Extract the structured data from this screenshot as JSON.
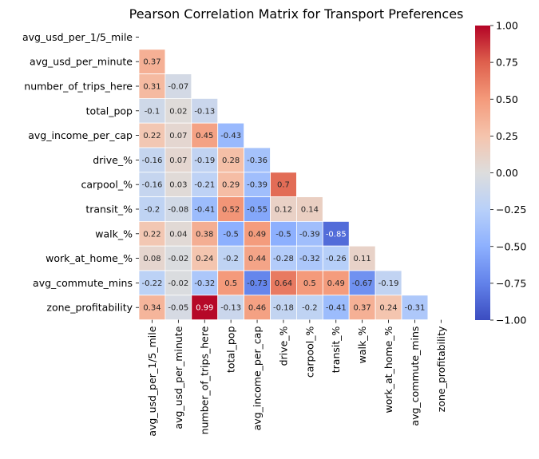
{
  "chart_data": {
    "type": "heatmap",
    "title": "Pearson Correlation Matrix for Transport Preferences",
    "variables": [
      "avg_usd_per_1/5_mile",
      "avg_usd_per_minute",
      "number_of_trips_here",
      "total_pop",
      "avg_income_per_cap",
      "drive_%",
      "carpool_%",
      "transit_%",
      "walk_%",
      "work_at_home_%",
      "avg_commute_mins",
      "zone_profitability"
    ],
    "lower_triangle": [
      [],
      [
        "0.37"
      ],
      [
        "0.31",
        "-0.07"
      ],
      [
        "-0.1",
        "0.02",
        "-0.13"
      ],
      [
        "0.22",
        "0.07",
        "0.45",
        "-0.43"
      ],
      [
        "-0.16",
        "0.07",
        "-0.19",
        "0.28",
        "-0.36"
      ],
      [
        "-0.16",
        "0.03",
        "-0.21",
        "0.29",
        "-0.39",
        "0.7"
      ],
      [
        "-0.2",
        "-0.08",
        "-0.41",
        "0.52",
        "-0.55",
        "0.12",
        "0.14"
      ],
      [
        "0.22",
        "0.04",
        "0.38",
        "-0.5",
        "0.49",
        "-0.5",
        "-0.39",
        "-0.85"
      ],
      [
        "0.08",
        "-0.02",
        "0.24",
        "-0.2",
        "0.44",
        "-0.28",
        "-0.32",
        "-0.26",
        "0.11"
      ],
      [
        "-0.22",
        "-0.02",
        "-0.32",
        "0.5",
        "-0.73",
        "0.64",
        "0.5",
        "0.49",
        "-0.67",
        "-0.19"
      ],
      [
        "0.34",
        "-0.05",
        "0.99",
        "-0.13",
        "0.46",
        "-0.18",
        "-0.2",
        "-0.41",
        "0.37",
        "0.24",
        "-0.31"
      ]
    ],
    "mask": "upper triangle including diagonal",
    "colormap": "coolwarm",
    "vmin": -1,
    "vmax": 1,
    "colorbar_ticks": [
      "1.00",
      "0.75",
      "0.50",
      "0.25",
      "0.00",
      "-0.25",
      "-0.50",
      "-0.75",
      "-1.00"
    ]
  }
}
